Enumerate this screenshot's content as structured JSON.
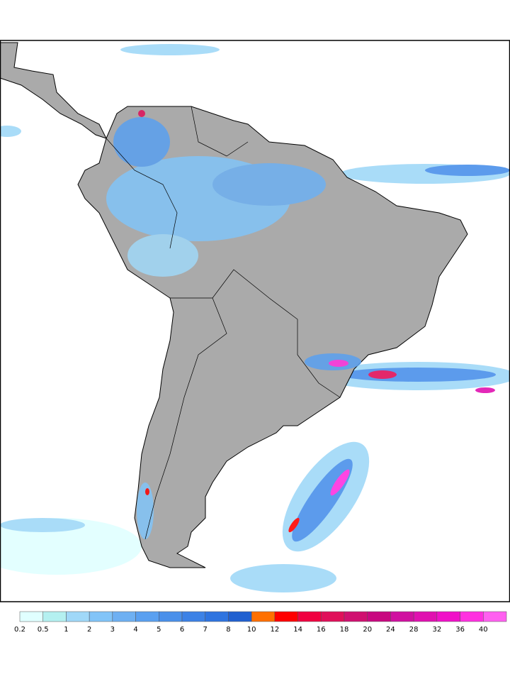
{
  "legend": {
    "levels": [
      0.2,
      0.5,
      1,
      2,
      3,
      4,
      5,
      6,
      7,
      8,
      10,
      12,
      14,
      16,
      18,
      20,
      24,
      28,
      32,
      36,
      40
    ],
    "colors": [
      "#e0ffff",
      "#b4f0f0",
      "#a0d8f8",
      "#82c4f8",
      "#6eb0f2",
      "#5aa0f0",
      "#4a90ea",
      "#3c82e6",
      "#2e74e0",
      "#2060d0",
      "#ff7000",
      "#ff0000",
      "#f00040",
      "#e0105a",
      "#d01070",
      "#c80880",
      "#d010a0",
      "#e010b0",
      "#f010c8",
      "#ff30e0",
      "#ff60f0"
    ]
  }
}
